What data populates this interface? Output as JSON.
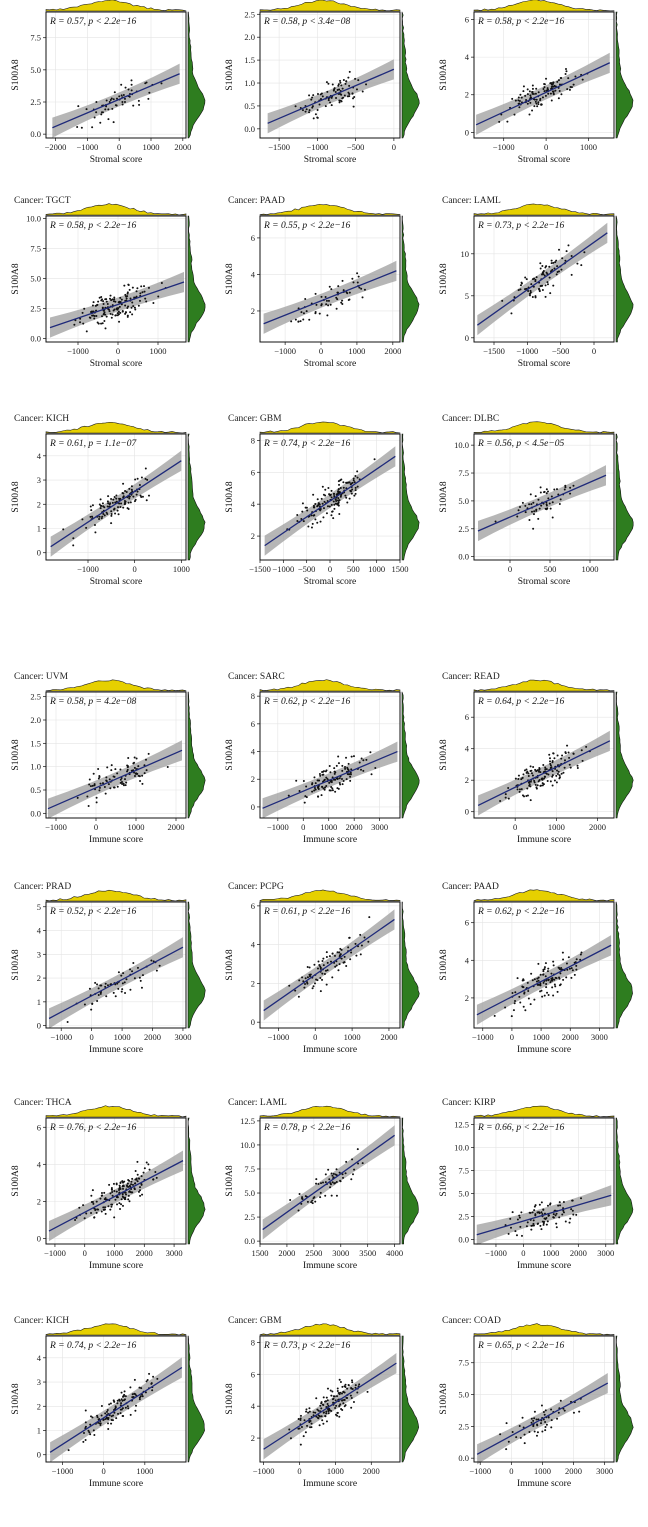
{
  "colors": {
    "density_x": "#e6d000",
    "density_y": "#2e7d1f",
    "fit_line": "#1f2a7a",
    "ci_band": "#9e9e9e",
    "point": "#111111"
  },
  "panels": [
    {
      "cancer_label": "",
      "stat_label": "R = 0.57, p < 2.2e−16",
      "xlabel": "Stromal score",
      "ylabel": "S100A8",
      "chart_data": {
        "type": "scatter",
        "x_ticks": [
          "−2000",
          "−1000",
          "0",
          "1000",
          "2000"
        ],
        "y_ticks": [
          "0.0",
          "2.5",
          "5.0",
          "7.5"
        ],
        "xlim": [
          -2300,
          2100
        ],
        "ylim": [
          -0.3,
          9.5
        ],
        "r": 0.57,
        "fit": {
          "x": [
            -2100,
            1900
          ],
          "y": [
            0.5,
            4.7
          ]
        }
      }
    },
    {
      "cancer_label": "",
      "stat_label": "R = 0.58, p < 3.4e−08",
      "xlabel": "Stromal score",
      "ylabel": "S100A8",
      "chart_data": {
        "type": "scatter",
        "x_ticks": [
          "−1500",
          "−1000",
          "−500",
          "0"
        ],
        "y_ticks": [
          "0.0",
          "0.5",
          "1.0",
          "1.5",
          "2.0",
          "2.5"
        ],
        "xlim": [
          -1750,
          80
        ],
        "ylim": [
          -0.2,
          2.55
        ],
        "r": 0.58,
        "fit": {
          "x": [
            -1650,
            0
          ],
          "y": [
            0.12,
            1.3
          ]
        }
      }
    },
    {
      "cancer_label": "",
      "stat_label": "R = 0.58, p < 2.2e−16",
      "xlabel": "Stromal score",
      "ylabel": "S100A8",
      "chart_data": {
        "type": "scatter",
        "x_ticks": [
          "−1000",
          "0",
          "1000"
        ],
        "y_ticks": [
          "0",
          "2",
          "4",
          "6"
        ],
        "xlim": [
          -1700,
          1600
        ],
        "ylim": [
          -0.3,
          6.4
        ],
        "r": 0.58,
        "fit": {
          "x": [
            -1650,
            1500
          ],
          "y": [
            0.4,
            3.7
          ]
        }
      }
    },
    {
      "cancer_label": "Cancer: TGCT",
      "stat_label": "R = 0.58, p < 2.2e−16",
      "xlabel": "Stromal score",
      "ylabel": "S100A8",
      "chart_data": {
        "type": "scatter",
        "x_ticks": [
          "−1000",
          "0",
          "1000"
        ],
        "y_ticks": [
          "0.0",
          "2.5",
          "5.0",
          "7.5",
          "10.0"
        ],
        "xlim": [
          -1800,
          1700
        ],
        "ylim": [
          -0.3,
          10.2
        ],
        "r": 0.58,
        "fit": {
          "x": [
            -1700,
            1650
          ],
          "y": [
            0.9,
            4.7
          ]
        }
      }
    },
    {
      "cancer_label": "Cancer: PAAD",
      "stat_label": "R = 0.55, p < 2.2e−16",
      "xlabel": "Stromal score",
      "ylabel": "S100A8",
      "chart_data": {
        "type": "scatter",
        "x_ticks": [
          "−1000",
          "0",
          "1000",
          "2000"
        ],
        "y_ticks": [
          "2",
          "4",
          "6"
        ],
        "xlim": [
          -1700,
          2200
        ],
        "ylim": [
          0.3,
          7.2
        ],
        "r": 0.55,
        "fit": {
          "x": [
            -1600,
            2100
          ],
          "y": [
            1.3,
            4.2
          ]
        }
      }
    },
    {
      "cancer_label": "Cancer: LAML",
      "stat_label": "R = 0.73, p < 2.2e−16",
      "xlabel": "Stromal score",
      "ylabel": "S100A8",
      "chart_data": {
        "type": "scatter",
        "x_ticks": [
          "−1500",
          "−1000",
          "−500",
          "0"
        ],
        "y_ticks": [
          "0",
          "5",
          "10"
        ],
        "xlim": [
          -1800,
          300
        ],
        "ylim": [
          -0.5,
          14.5
        ],
        "r": 0.73,
        "fit": {
          "x": [
            -1750,
            200
          ],
          "y": [
            1.5,
            12.5
          ]
        }
      }
    },
    {
      "cancer_label": "Cancer: KICH",
      "stat_label": "R = 0.61, p = 1.1e−07",
      "xlabel": "Stromal score",
      "ylabel": "S100A8",
      "chart_data": {
        "type": "scatter",
        "x_ticks": [
          "−1000",
          "0",
          "1000"
        ],
        "y_ticks": [
          "0",
          "1",
          "2",
          "3",
          "4"
        ],
        "xlim": [
          -1900,
          1100
        ],
        "ylim": [
          -0.3,
          4.9
        ],
        "r": 0.61,
        "fit": {
          "x": [
            -1800,
            1000
          ],
          "y": [
            0.25,
            3.8
          ]
        }
      }
    },
    {
      "cancer_label": "Cancer: GBM",
      "stat_label": "R = 0.74, p < 2.2e−16",
      "xlabel": "Stromal score",
      "ylabel": "S100A8",
      "chart_data": {
        "type": "scatter",
        "x_ticks": [
          "−1500",
          "−1000",
          "−500",
          "0",
          "500",
          "1000",
          "1500"
        ],
        "y_ticks": [
          "2",
          "4",
          "6",
          "8"
        ],
        "xlim": [
          -1500,
          1500
        ],
        "ylim": [
          0.5,
          8.4
        ],
        "r": 0.74,
        "fit": {
          "x": [
            -1400,
            1400
          ],
          "y": [
            1.4,
            7.0
          ]
        }
      }
    },
    {
      "cancer_label": "Cancer: DLBC",
      "stat_label": "R = 0.56, p < 4.5e−05",
      "xlabel": "Stromal score",
      "ylabel": "S100A8",
      "chart_data": {
        "type": "scatter",
        "x_ticks": [
          "0",
          "500",
          "1000"
        ],
        "y_ticks": [
          "0.0",
          "2.5",
          "5.0",
          "7.5",
          "10.0"
        ],
        "xlim": [
          -450,
          1300
        ],
        "ylim": [
          -0.3,
          11.0
        ],
        "r": 0.56,
        "fit": {
          "x": [
            -400,
            1200
          ],
          "y": [
            2.3,
            7.3
          ]
        }
      }
    },
    {
      "cancer_label": "Cancer: UVM",
      "stat_label": "R = 0.58, p = 4.2e−08",
      "xlabel": "Immune score",
      "ylabel": "S100A8",
      "chart_data": {
        "type": "scatter",
        "x_ticks": [
          "−1000",
          "0",
          "1000",
          "2000"
        ],
        "y_ticks": [
          "0.0",
          "0.5",
          "1.0",
          "1.5",
          "2.0",
          "2.5"
        ],
        "xlim": [
          -1250,
          2250
        ],
        "ylim": [
          -0.1,
          2.6
        ],
        "r": 0.58,
        "fit": {
          "x": [
            -1200,
            2150
          ],
          "y": [
            0.1,
            1.35
          ]
        }
      }
    },
    {
      "cancer_label": "Cancer: SARC",
      "stat_label": "R = 0.62, p < 2.2e−16",
      "xlabel": "Immune score",
      "ylabel": "S100A8",
      "chart_data": {
        "type": "scatter",
        "x_ticks": [
          "−1000",
          "0",
          "1000",
          "2000",
          "3000"
        ],
        "y_ticks": [
          "0",
          "2",
          "4",
          "6",
          "8"
        ],
        "xlim": [
          -1700,
          3800
        ],
        "ylim": [
          -0.8,
          8.3
        ],
        "r": 0.62,
        "fit": {
          "x": [
            -1600,
            3700
          ],
          "y": [
            -0.1,
            4.0
          ]
        }
      }
    },
    {
      "cancer_label": "Cancer: READ",
      "stat_label": "R = 0.64, p < 2.2e−16",
      "xlabel": "Immune score",
      "ylabel": "S100A8",
      "chart_data": {
        "type": "scatter",
        "x_ticks": [
          "0",
          "1000",
          "2000"
        ],
        "y_ticks": [
          "0",
          "2",
          "4",
          "6"
        ],
        "xlim": [
          -1000,
          2400
        ],
        "ylim": [
          -0.4,
          7.6
        ],
        "r": 0.64,
        "fit": {
          "x": [
            -900,
            2300
          ],
          "y": [
            0.4,
            4.5
          ]
        }
      }
    },
    {
      "cancer_label": "Cancer: PRAD",
      "stat_label": "R = 0.52, p < 2.2e−16",
      "xlabel": "Immune score",
      "ylabel": "S100A8",
      "chart_data": {
        "type": "scatter",
        "x_ticks": [
          "−1000",
          "0",
          "1000",
          "2000",
          "3000"
        ],
        "y_ticks": [
          "0",
          "1",
          "2",
          "3",
          "4",
          "5"
        ],
        "xlim": [
          -1500,
          3100
        ],
        "ylim": [
          -0.1,
          5.2
        ],
        "r": 0.52,
        "fit": {
          "x": [
            -1400,
            3000
          ],
          "y": [
            0.3,
            3.3
          ]
        }
      }
    },
    {
      "cancer_label": "Cancer: PCPG",
      "stat_label": "R = 0.61, p < 2.2e−16",
      "xlabel": "Immune score",
      "ylabel": "S100A8",
      "chart_data": {
        "type": "scatter",
        "x_ticks": [
          "−1000",
          "0",
          "1000",
          "2000"
        ],
        "y_ticks": [
          "0",
          "2",
          "4",
          "6"
        ],
        "xlim": [
          -1500,
          2300
        ],
        "ylim": [
          -0.3,
          6.2
        ],
        "r": 0.61,
        "fit": {
          "x": [
            -1400,
            2150
          ],
          "y": [
            0.6,
            5.3
          ]
        }
      }
    },
    {
      "cancer_label": "Cancer: PAAD",
      "stat_label": "R = 0.62, p < 2.2e−16",
      "xlabel": "Immune score",
      "ylabel": "S100A8",
      "chart_data": {
        "type": "scatter",
        "x_ticks": [
          "−1000",
          "0",
          "1000",
          "2000",
          "3000"
        ],
        "y_ticks": [
          "2",
          "4",
          "6"
        ],
        "xlim": [
          -1300,
          3500
        ],
        "ylim": [
          0.4,
          7.1
        ],
        "r": 0.62,
        "fit": {
          "x": [
            -1200,
            3400
          ],
          "y": [
            1.1,
            4.8
          ]
        }
      }
    },
    {
      "cancer_label": "Cancer: THCA",
      "stat_label": "R = 0.76, p < 2.2e−16",
      "xlabel": "Immune score",
      "ylabel": "S100A8",
      "chart_data": {
        "type": "scatter",
        "x_ticks": [
          "−1000",
          "0",
          "1000",
          "2000",
          "3000"
        ],
        "y_ticks": [
          "0",
          "2",
          "4",
          "6"
        ],
        "xlim": [
          -1300,
          3400
        ],
        "ylim": [
          -0.3,
          6.5
        ],
        "r": 0.76,
        "fit": {
          "x": [
            -1200,
            3300
          ],
          "y": [
            0.4,
            4.2
          ]
        }
      }
    },
    {
      "cancer_label": "Cancer: LAML",
      "stat_label": "R = 0.78, p < 2.2e−16",
      "xlabel": "Immune score",
      "ylabel": "S100A8",
      "chart_data": {
        "type": "scatter",
        "x_ticks": [
          "1500",
          "2000",
          "2500",
          "3000",
          "3500",
          "4000"
        ],
        "y_ticks": [
          "0.0",
          "2.5",
          "5.0",
          "7.5",
          "10.0",
          "12.5"
        ],
        "xlim": [
          1500,
          4100
        ],
        "ylim": [
          -0.3,
          12.8
        ],
        "r": 0.78,
        "fit": {
          "x": [
            1550,
            4000
          ],
          "y": [
            1.2,
            11.0
          ]
        }
      }
    },
    {
      "cancer_label": "Cancer: KIRP",
      "stat_label": "R = 0.66, p < 2.2e−16",
      "xlabel": "Immune score",
      "ylabel": "S100A8",
      "chart_data": {
        "type": "scatter",
        "x_ticks": [
          "−1000",
          "0",
          "1000",
          "2000",
          "3000"
        ],
        "y_ticks": [
          "0.0",
          "2.5",
          "5.0",
          "7.5",
          "10.0",
          "12.5"
        ],
        "xlim": [
          -1800,
          3300
        ],
        "ylim": [
          -0.5,
          13.2
        ],
        "r": 0.66,
        "fit": {
          "x": [
            -1700,
            3200
          ],
          "y": [
            0.5,
            4.8
          ]
        }
      }
    },
    {
      "cancer_label": "Cancer: KICH",
      "stat_label": "R = 0.74, p < 2.2e−16",
      "xlabel": "Immune score",
      "ylabel": "S100A8",
      "chart_data": {
        "type": "scatter",
        "x_ticks": [
          "−1000",
          "0",
          "1000"
        ],
        "y_ticks": [
          "0",
          "1",
          "2",
          "3",
          "4"
        ],
        "xlim": [
          -1400,
          2000
        ],
        "ylim": [
          -0.3,
          4.9
        ],
        "r": 0.74,
        "fit": {
          "x": [
            -1300,
            1900
          ],
          "y": [
            0.1,
            3.6
          ]
        }
      }
    },
    {
      "cancer_label": "Cancer: GBM",
      "stat_label": "R = 0.73, p < 2.2e−16",
      "xlabel": "Immune score",
      "ylabel": "S100A8",
      "chart_data": {
        "type": "scatter",
        "x_ticks": [
          "−1000",
          "0",
          "1000",
          "2000"
        ],
        "y_ticks": [
          "2",
          "4",
          "6",
          "8"
        ],
        "xlim": [
          -1100,
          2800
        ],
        "ylim": [
          0.5,
          8.4
        ],
        "r": 0.73,
        "fit": {
          "x": [
            -1000,
            2700
          ],
          "y": [
            1.3,
            6.7
          ]
        }
      }
    },
    {
      "cancer_label": "Cancer: COAD",
      "stat_label": "R = 0.65, p < 2.2e−16",
      "xlabel": "Immune score",
      "ylabel": "S100A8",
      "chart_data": {
        "type": "scatter",
        "x_ticks": [
          "−1000",
          "0",
          "1000",
          "2000",
          "3000"
        ],
        "y_ticks": [
          "0.0",
          "2.5",
          "5.0",
          "7.5"
        ],
        "xlim": [
          -1200,
          3300
        ],
        "ylim": [
          -0.3,
          9.6
        ],
        "r": 0.65,
        "fit": {
          "x": [
            -1100,
            3100
          ],
          "y": [
            0.3,
            5.9
          ]
        }
      }
    }
  ]
}
